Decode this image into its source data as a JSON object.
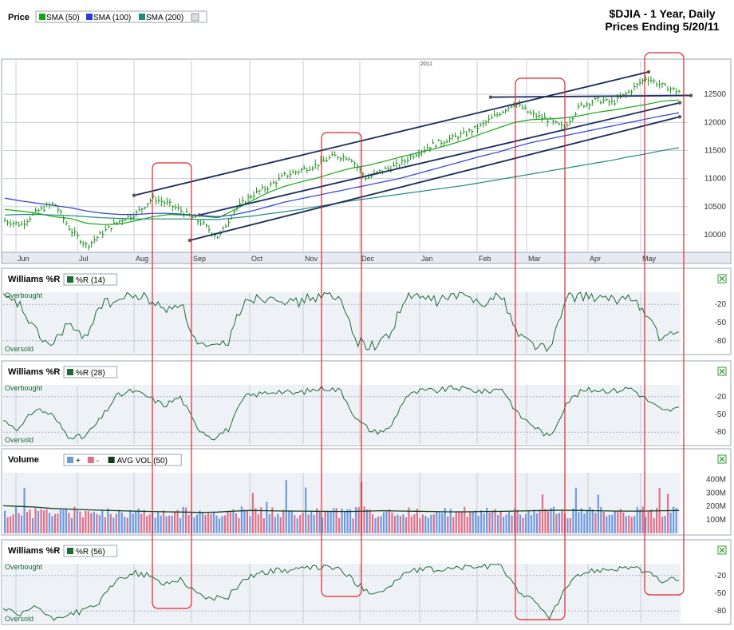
{
  "title": {
    "line1": "$DJIA - 1 Year, Daily",
    "line2": "Prices Ending 5/20/11"
  },
  "colors": {
    "price_bar": "#1e8c1e",
    "sma50": "#13a813",
    "sma100": "#2a3cd6",
    "sma200": "#1e8c78",
    "trendline": "#1a2a5e",
    "highlight_box": "#e0242a",
    "williams_line": "#1f6b34",
    "vol_up": "#6f9ae0",
    "vol_down": "#e0708a",
    "avg_vol": "#0d3d1a",
    "panel_bg": "#eef2f7",
    "panel_border": "#9aa4b2",
    "grid": "#c8ced6"
  },
  "chart_data": [
    {
      "type": "line",
      "panel": "Price",
      "legend": [
        {
          "label": "SMA (50)",
          "color": "#13a813"
        },
        {
          "label": "SMA (100)",
          "color": "#2a3cd6"
        },
        {
          "label": "SMA (200)",
          "color": "#1e8c78"
        }
      ],
      "x_tick_labels": [
        "Jun",
        "Jul",
        "Aug",
        "Sep",
        "Oct",
        "Nov",
        "Dec",
        "Jan",
        "Feb",
        "Mar",
        "Apr",
        "May"
      ],
      "x_annotation": "2011",
      "y_ticks": [
        10000,
        10500,
        11000,
        11500,
        12000,
        12500
      ],
      "ylim": [
        9700,
        13100
      ],
      "series": [
        {
          "name": "Price (close)",
          "values": [
            10250,
            10180,
            10420,
            10560,
            10080,
            9800,
            10050,
            10250,
            10380,
            10650,
            10540,
            10380,
            10200,
            9950,
            10450,
            10700,
            10850,
            11050,
            11150,
            11250,
            11400,
            11380,
            11000,
            11150,
            11250,
            11450,
            11600,
            11700,
            11800,
            11950,
            12150,
            12350,
            12150,
            12050,
            11900,
            12300,
            12400,
            12350,
            12550,
            12800,
            12650,
            12550
          ]
        },
        {
          "name": "SMA (50)",
          "values": [
            10450,
            10420,
            10380,
            10320,
            10290,
            10200,
            10180,
            10190,
            10250,
            10320,
            10360,
            10350,
            10330,
            10300,
            10450,
            10600,
            10750,
            10860,
            10940,
            11010,
            11100,
            11180,
            11230,
            11300,
            11380,
            11450,
            11520,
            11600,
            11690,
            11800,
            11900,
            12000,
            12050,
            12060,
            12080,
            12120,
            12180,
            12220,
            12270,
            12320,
            12380,
            12400
          ]
        },
        {
          "name": "SMA (100)",
          "values": [
            10650,
            10600,
            10560,
            10520,
            10480,
            10420,
            10380,
            10360,
            10360,
            10380,
            10380,
            10360,
            10340,
            10320,
            10360,
            10420,
            10500,
            10580,
            10640,
            10700,
            10760,
            10820,
            10880,
            10940,
            11000,
            11080,
            11160,
            11240,
            11320,
            11400,
            11470,
            11560,
            11640,
            11700,
            11760,
            11820,
            11880,
            11940,
            12000,
            12060,
            12120,
            12170
          ]
        },
        {
          "name": "SMA (200)",
          "values": [
            10350,
            10360,
            10360,
            10350,
            10340,
            10320,
            10300,
            10290,
            10280,
            10280,
            10280,
            10280,
            10270,
            10270,
            10300,
            10330,
            10370,
            10410,
            10450,
            10500,
            10550,
            10600,
            10640,
            10680,
            10720,
            10760,
            10800,
            10840,
            10880,
            10930,
            10980,
            11030,
            11080,
            11130,
            11180,
            11230,
            11280,
            11330,
            11390,
            11440,
            11500,
            11550
          ]
        }
      ],
      "annotations": [
        "upper channel: early Aug ~10700 to early May ~12900",
        "middle channel: early Sep ~10350 to May 20 ~12350",
        "lower channel: end of Aug ~9900 to May 20 ~12100",
        "horizontal line ~12450 from Feb to May",
        "red highlight boxes around late Aug, Nov, Mar and May"
      ]
    },
    {
      "type": "line",
      "panel": "Williams %R",
      "legend": [
        {
          "label": "%R (14)",
          "color": "#1f6b34"
        }
      ],
      "levels": {
        "overbought": "Overbought",
        "oversold": "Oversold"
      },
      "y_tick_labels": [
        "-20",
        "-50",
        "-80"
      ],
      "ylim": [
        -100,
        0
      ],
      "values": [
        -10,
        -20,
        -65,
        -90,
        -50,
        -80,
        -20,
        -15,
        -5,
        -10,
        -30,
        -15,
        -85,
        -95,
        -80,
        -10,
        -10,
        -5,
        -20,
        -10,
        -5,
        -15,
        -80,
        -90,
        -70,
        -10,
        -8,
        -15,
        -5,
        -10,
        -15,
        -5,
        -70,
        -85,
        -95,
        -10,
        -5,
        -10,
        -15,
        -5,
        -40,
        -80,
        -65
      ]
    },
    {
      "type": "line",
      "panel": "Williams %R",
      "legend": [
        {
          "label": "%R (28)",
          "color": "#1f6b34"
        }
      ],
      "levels": {
        "overbought": "Overbought",
        "oversold": "Oversold"
      },
      "y_tick_labels": [
        "-20",
        "-50",
        "-80"
      ],
      "ylim": [
        -100,
        0
      ],
      "values": [
        -60,
        -75,
        -40,
        -50,
        -85,
        -90,
        -60,
        -20,
        -10,
        -20,
        -35,
        -20,
        -70,
        -90,
        -75,
        -20,
        -15,
        -10,
        -15,
        -10,
        -5,
        -10,
        -60,
        -80,
        -75,
        -20,
        -10,
        -10,
        -5,
        -8,
        -12,
        -5,
        -50,
        -70,
        -90,
        -30,
        -10,
        -8,
        -10,
        -5,
        -25,
        -45,
        -40
      ]
    },
    {
      "type": "bar",
      "panel": "Volume",
      "legend": [
        {
          "label": "+",
          "color": "#6f9ae0"
        },
        {
          "label": "-",
          "color": "#e0708a"
        },
        {
          "label": "AVG VOL (50)",
          "color": "#0d3d1a"
        }
      ],
      "y_tick_labels": [
        "400M",
        "300M",
        "200M",
        "100M"
      ],
      "ylim": [
        0,
        450
      ],
      "avg_vol": [
        205,
        200,
        195,
        185,
        180,
        175,
        172,
        168,
        165,
        162,
        160,
        158,
        155,
        158,
        165,
        170,
        168,
        166,
        165,
        164,
        163,
        162,
        165,
        168,
        166,
        164,
        162,
        160,
        160,
        162,
        163,
        165,
        168,
        170,
        172,
        170,
        168,
        166,
        165,
        166,
        168,
        170
      ]
    },
    {
      "type": "line",
      "panel": "Williams %R",
      "legend": [
        {
          "label": "%R (56)",
          "color": "#1f6b34"
        }
      ],
      "levels": {
        "overbought": "Overbought",
        "oversold": "Oversold"
      },
      "y_tick_labels": [
        "-20",
        "-50",
        "-80"
      ],
      "ylim": [
        -100,
        0
      ],
      "values": [
        -75,
        -90,
        -70,
        -95,
        -85,
        -80,
        -65,
        -30,
        -15,
        -20,
        -35,
        -25,
        -50,
        -60,
        -55,
        -25,
        -15,
        -12,
        -10,
        -8,
        -5,
        -10,
        -35,
        -50,
        -40,
        -15,
        -10,
        -10,
        -8,
        -5,
        -5,
        -5,
        -45,
        -65,
        -90,
        -40,
        -15,
        -10,
        -8,
        -5,
        -15,
        -30,
        -25
      ]
    }
  ]
}
